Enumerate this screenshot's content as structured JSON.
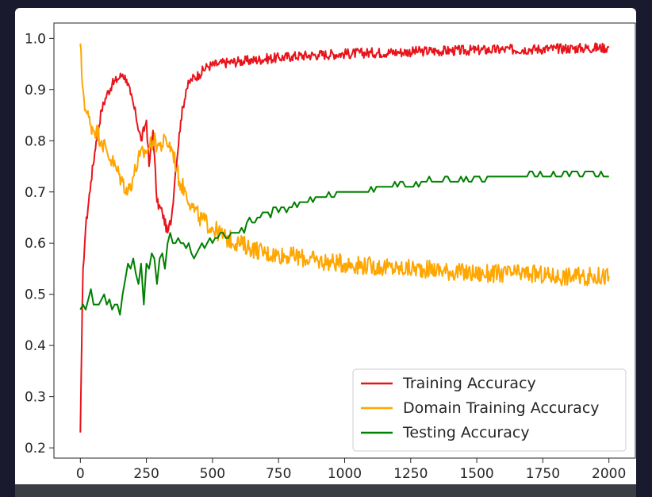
{
  "chart_data": {
    "type": "line",
    "title": "",
    "xlabel": "",
    "ylabel": "",
    "xlim": [
      -100,
      2100
    ],
    "ylim": [
      0.18,
      1.03
    ],
    "xticks": [
      0,
      250,
      500,
      750,
      1000,
      1250,
      1500,
      1750,
      2000
    ],
    "yticks": [
      0.2,
      0.3,
      0.4,
      0.5,
      0.6,
      0.7,
      0.8,
      0.9,
      1.0
    ],
    "xtick_labels": [
      "0",
      "250",
      "500",
      "750",
      "1000",
      "1250",
      "1500",
      "1750",
      "2000"
    ],
    "ytick_labels": [
      "0.2",
      "0.3",
      "0.4",
      "0.5",
      "0.6",
      "0.7",
      "0.8",
      "0.9",
      "1.0"
    ],
    "grid": false,
    "legend_position": "lower-right",
    "series": [
      {
        "name": "Training Accuracy",
        "color": "#e8141b",
        "x": [
          0,
          5,
          10,
          20,
          40,
          60,
          80,
          100,
          120,
          140,
          160,
          175,
          190,
          210,
          230,
          250,
          260,
          275,
          290,
          310,
          330,
          345,
          360,
          380,
          400,
          420,
          450,
          480,
          520,
          560,
          600,
          650,
          700,
          750,
          800,
          900,
          1000,
          1100,
          1200,
          1300,
          1400,
          1500,
          1600,
          1700,
          1800,
          1900,
          2000
        ],
        "values": [
          0.23,
          0.4,
          0.55,
          0.63,
          0.72,
          0.8,
          0.86,
          0.89,
          0.91,
          0.92,
          0.93,
          0.92,
          0.89,
          0.85,
          0.8,
          0.84,
          0.75,
          0.82,
          0.68,
          0.66,
          0.62,
          0.65,
          0.74,
          0.84,
          0.9,
          0.92,
          0.93,
          0.945,
          0.95,
          0.953,
          0.955,
          0.957,
          0.96,
          0.962,
          0.965,
          0.968,
          0.97,
          0.972,
          0.973,
          0.975,
          0.976,
          0.977,
          0.978,
          0.979,
          0.98,
          0.981,
          0.982
        ]
      },
      {
        "name": "Domain Training Accuracy",
        "color": "#ffa600",
        "x": [
          0,
          5,
          10,
          20,
          40,
          60,
          80,
          100,
          120,
          140,
          160,
          180,
          200,
          225,
          250,
          275,
          300,
          325,
          350,
          375,
          400,
          425,
          450,
          500,
          550,
          600,
          650,
          700,
          800,
          900,
          1000,
          1100,
          1200,
          1300,
          1400,
          1500,
          1600,
          1700,
          1800,
          1900,
          2000
        ],
        "values": [
          0.99,
          0.93,
          0.9,
          0.86,
          0.83,
          0.82,
          0.8,
          0.78,
          0.76,
          0.74,
          0.72,
          0.7,
          0.73,
          0.77,
          0.78,
          0.8,
          0.79,
          0.8,
          0.78,
          0.72,
          0.7,
          0.67,
          0.65,
          0.63,
          0.61,
          0.6,
          0.59,
          0.58,
          0.575,
          0.565,
          0.56,
          0.555,
          0.55,
          0.55,
          0.545,
          0.54,
          0.54,
          0.54,
          0.535,
          0.535,
          0.535
        ]
      },
      {
        "name": "Testing Accuracy",
        "color": "#008000",
        "x": [
          0,
          10,
          20,
          30,
          40,
          50,
          60,
          70,
          80,
          90,
          100,
          110,
          120,
          130,
          140,
          150,
          160,
          170,
          180,
          190,
          200,
          210,
          220,
          230,
          240,
          250,
          260,
          270,
          280,
          290,
          300,
          310,
          320,
          330,
          340,
          350,
          360,
          370,
          380,
          390,
          400,
          410,
          420,
          430,
          440,
          450,
          460,
          470,
          480,
          490,
          500,
          510,
          520,
          530,
          540,
          550,
          560,
          570,
          580,
          590,
          600,
          610,
          620,
          630,
          640,
          650,
          660,
          670,
          680,
          690,
          700,
          710,
          720,
          730,
          740,
          750,
          760,
          770,
          780,
          790,
          800,
          810,
          820,
          830,
          840,
          850,
          860,
          870,
          880,
          890,
          900,
          910,
          920,
          930,
          940,
          950,
          960,
          970,
          980,
          990,
          1000,
          1010,
          1020,
          1030,
          1040,
          1050,
          1060,
          1070,
          1080,
          1090,
          1100,
          1110,
          1120,
          1130,
          1140,
          1150,
          1160,
          1170,
          1180,
          1190,
          1200,
          1210,
          1220,
          1230,
          1240,
          1250,
          1260,
          1270,
          1280,
          1290,
          1300,
          1310,
          1320,
          1330,
          1340,
          1350,
          1360,
          1370,
          1380,
          1390,
          1400,
          1410,
          1420,
          1430,
          1440,
          1450,
          1460,
          1470,
          1480,
          1490,
          1500,
          1510,
          1520,
          1530,
          1540,
          1550,
          1560,
          1570,
          1580,
          1590,
          1600,
          1610,
          1620,
          1630,
          1640,
          1650,
          1660,
          1670,
          1680,
          1690,
          1700,
          1710,
          1720,
          1730,
          1740,
          1750,
          1760,
          1770,
          1780,
          1790,
          1800,
          1810,
          1820,
          1830,
          1840,
          1850,
          1860,
          1870,
          1880,
          1890,
          1900,
          1910,
          1920,
          1930,
          1940,
          1950,
          1960,
          1970,
          1980,
          1990,
          2000
        ],
        "values": [
          0.47,
          0.48,
          0.47,
          0.49,
          0.51,
          0.48,
          0.48,
          0.48,
          0.49,
          0.5,
          0.48,
          0.49,
          0.47,
          0.48,
          0.48,
          0.46,
          0.5,
          0.53,
          0.56,
          0.55,
          0.57,
          0.54,
          0.52,
          0.56,
          0.48,
          0.56,
          0.55,
          0.58,
          0.57,
          0.52,
          0.57,
          0.58,
          0.55,
          0.6,
          0.62,
          0.6,
          0.6,
          0.61,
          0.6,
          0.6,
          0.59,
          0.6,
          0.58,
          0.57,
          0.58,
          0.59,
          0.6,
          0.59,
          0.6,
          0.61,
          0.6,
          0.61,
          0.61,
          0.62,
          0.62,
          0.61,
          0.61,
          0.62,
          0.62,
          0.62,
          0.62,
          0.63,
          0.62,
          0.64,
          0.65,
          0.64,
          0.64,
          0.65,
          0.65,
          0.66,
          0.66,
          0.66,
          0.65,
          0.67,
          0.67,
          0.66,
          0.67,
          0.67,
          0.66,
          0.67,
          0.67,
          0.68,
          0.67,
          0.68,
          0.68,
          0.68,
          0.68,
          0.69,
          0.68,
          0.69,
          0.69,
          0.69,
          0.69,
          0.69,
          0.7,
          0.69,
          0.69,
          0.7,
          0.7,
          0.7,
          0.7,
          0.7,
          0.7,
          0.7,
          0.7,
          0.7,
          0.7,
          0.7,
          0.7,
          0.7,
          0.71,
          0.7,
          0.71,
          0.71,
          0.71,
          0.71,
          0.71,
          0.71,
          0.71,
          0.72,
          0.71,
          0.72,
          0.72,
          0.71,
          0.71,
          0.71,
          0.71,
          0.72,
          0.71,
          0.72,
          0.72,
          0.72,
          0.73,
          0.72,
          0.72,
          0.72,
          0.72,
          0.72,
          0.73,
          0.73,
          0.72,
          0.72,
          0.72,
          0.72,
          0.73,
          0.72,
          0.73,
          0.72,
          0.72,
          0.73,
          0.73,
          0.73,
          0.72,
          0.72,
          0.73,
          0.73,
          0.73,
          0.73,
          0.73,
          0.73,
          0.73,
          0.73,
          0.73,
          0.73,
          0.73,
          0.73,
          0.73,
          0.73,
          0.73,
          0.73,
          0.74,
          0.74,
          0.73,
          0.73,
          0.74,
          0.73,
          0.73,
          0.73,
          0.73,
          0.74,
          0.73,
          0.73,
          0.73,
          0.74,
          0.74,
          0.73,
          0.74,
          0.74,
          0.74,
          0.73,
          0.73,
          0.74,
          0.74,
          0.74,
          0.74,
          0.73,
          0.73,
          0.74,
          0.73,
          0.73,
          0.73
        ]
      }
    ]
  },
  "legend": {
    "entries": [
      "Training Accuracy",
      "Domain Training Accuracy",
      "Testing Accuracy"
    ]
  }
}
